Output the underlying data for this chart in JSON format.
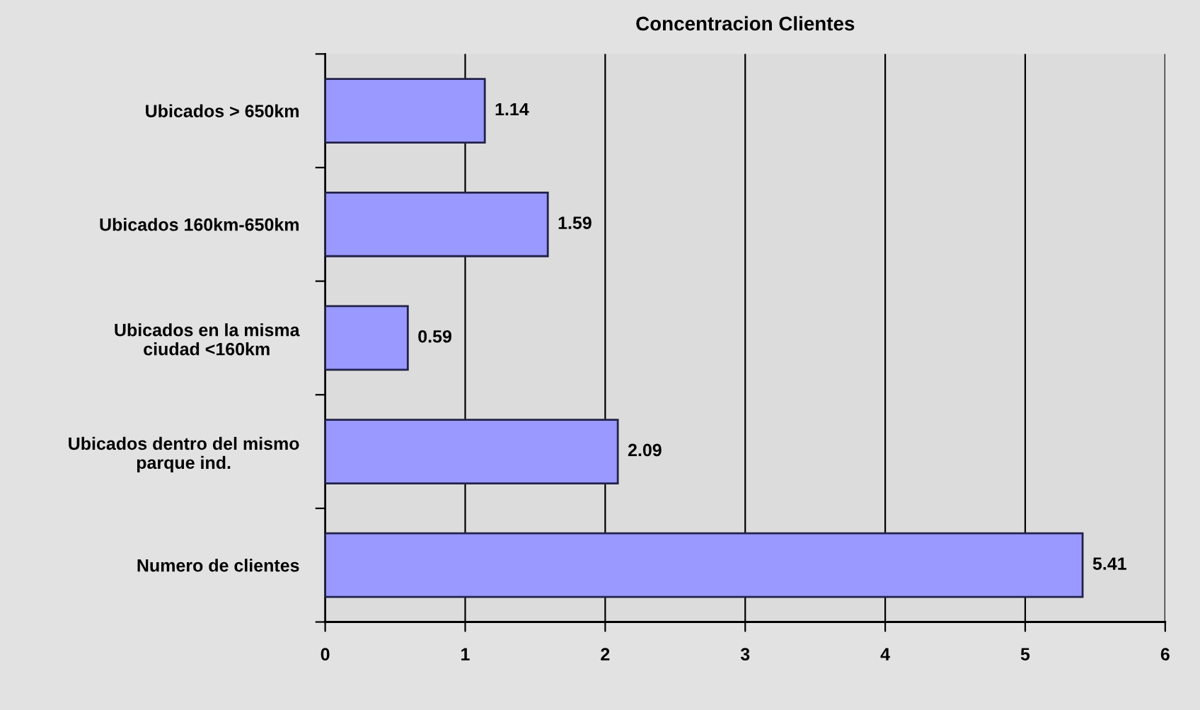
{
  "chart_data": {
    "type": "bar",
    "orientation": "horizontal",
    "title": "Concentracion Clientes",
    "categories": [
      "Ubicados > 650km",
      "Ubicados 160km-650km",
      "Ubicados en la misma\nciudad <160km",
      "Ubicados dentro del mismo\nparque ind.",
      "Numero de clientes"
    ],
    "values": [
      1.14,
      1.59,
      0.59,
      2.09,
      5.41
    ],
    "color": "#9999ff",
    "xlim": [
      0,
      6
    ],
    "xticks": [
      0,
      1,
      2,
      3,
      4,
      5,
      6
    ],
    "grid": "x",
    "data_labels": true
  }
}
